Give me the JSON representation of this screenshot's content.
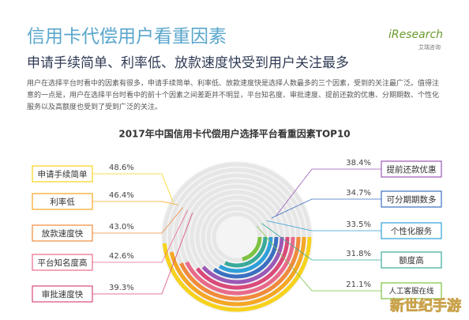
{
  "header": {
    "title": "信用卡代偿用户看重因素",
    "subtitle": "申请手续简单、利率低、放款速度快受到用户关注最多",
    "paragraph": "用户在选择平台时看中的因素有很多，申请手续简单、利率低、放款速度快是选择人数最多的三个因素，受到的关注最广泛。值得注意的一点是，用户在选择平台时看中的前十个因素之间差距并不明显，平台知名度、审批速度、提前还款的优惠、分期期数、个性化服务以及高额度也受到了受到广泛的关注。"
  },
  "logo": {
    "brand": "iResearch",
    "sub": "艾瑞咨询"
  },
  "watermark": "新世纪手游",
  "chart_data": {
    "type": "radial_bar",
    "title": "2017年中国信用卡代偿用户选择平台看重因素TOP10",
    "categories": [
      "申请手续简单",
      "利率低",
      "放款速度快",
      "平台知名度高",
      "审批速度快",
      "提前还款优惠",
      "可分期期数多",
      "个性化服务",
      "额度高",
      "人工客服在线"
    ],
    "values": [
      48.6,
      46.4,
      43.0,
      42.6,
      39.3,
      38.4,
      34.7,
      33.5,
      31.8,
      21.1
    ],
    "value_labels": [
      "48.6%",
      "46.4%",
      "43.0%",
      "42.6%",
      "39.3%",
      "38.4%",
      "34.7%",
      "33.5%",
      "31.8%",
      "21.1%"
    ],
    "colors": [
      "#f7d21c",
      "#f5a623",
      "#f08a3c",
      "#e86a8a",
      "#d94a7a",
      "#9b59b6",
      "#3b6fc0",
      "#2f9fd8",
      "#3aaa9a",
      "#7dc242"
    ]
  }
}
